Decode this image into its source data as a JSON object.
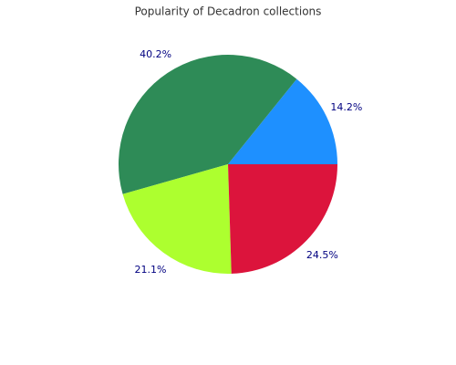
{
  "chart_data": {
    "type": "pie",
    "title": "Popularity of Decadron collections",
    "values": [
      14.2,
      40.2,
      21.1,
      24.5
    ],
    "value_labels": [
      "14.2%",
      "40.2%",
      "21.1%",
      "24.5%"
    ],
    "colors": [
      "#1e90ff",
      "#2e8b57",
      "#adff2f",
      "#dc143c"
    ]
  }
}
